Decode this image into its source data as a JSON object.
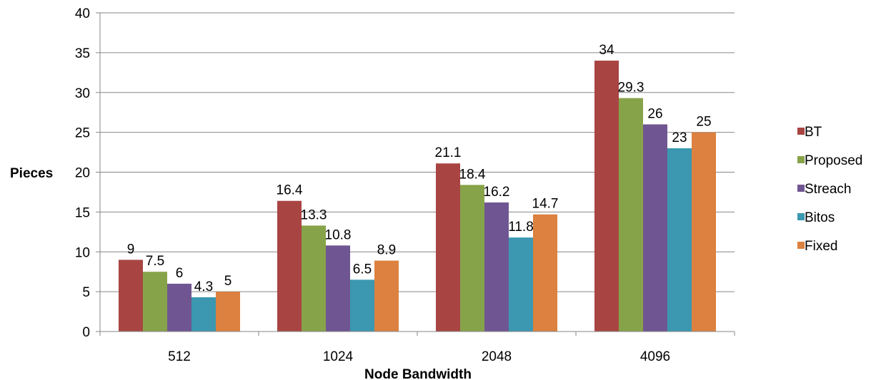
{
  "chart_data": {
    "type": "bar",
    "categories": [
      "512",
      "1024",
      "2048",
      "4096"
    ],
    "series": [
      {
        "name": "BT",
        "color": "#a84543",
        "values": [
          9,
          16.4,
          21.1,
          34
        ]
      },
      {
        "name": "Proposed",
        "color": "#87a34a",
        "values": [
          7.5,
          13.3,
          18.4,
          29.3
        ]
      },
      {
        "name": "Streach",
        "color": "#6f5692",
        "values": [
          6,
          10.8,
          16.2,
          26
        ]
      },
      {
        "name": "Bitos",
        "color": "#3b98b0",
        "values": [
          4.3,
          6.5,
          11.8,
          23
        ]
      },
      {
        "name": "Fixed",
        "color": "#dc813f",
        "values": [
          5,
          8.9,
          14.7,
          25
        ]
      }
    ],
    "xlabel": "Node Bandwidth",
    "ylabel": "Pieces",
    "ylim": [
      0,
      40
    ],
    "yticks": [
      0,
      5,
      10,
      15,
      20,
      25,
      30,
      35,
      40
    ],
    "grid": true,
    "legend_position": "right",
    "data_labels": true
  }
}
